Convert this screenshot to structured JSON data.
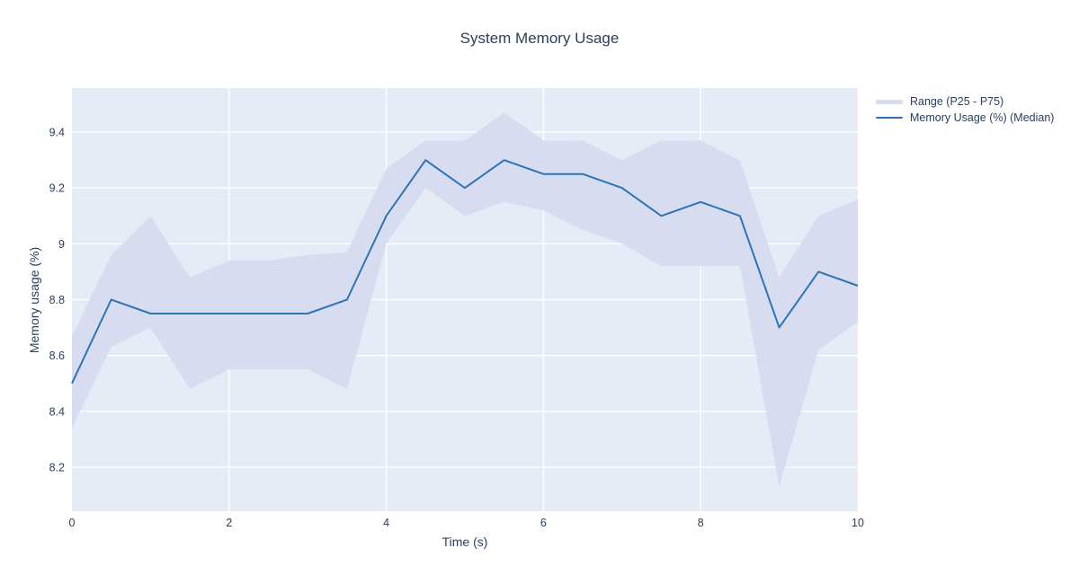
{
  "chart_data": {
    "type": "line",
    "title": "System Memory Usage",
    "xlabel": "Time (s)",
    "ylabel": "Memory usage (%)",
    "x": [
      0,
      0.5,
      1,
      1.5,
      2,
      2.5,
      3,
      3.5,
      4,
      4.5,
      5,
      5.5,
      6,
      6.5,
      7,
      7.5,
      8,
      8.5,
      9,
      9.5,
      10
    ],
    "series": [
      {
        "name": "Memory Usage (%) (Median)",
        "values": [
          8.5,
          8.8,
          8.75,
          8.75,
          8.75,
          8.75,
          8.75,
          8.8,
          9.1,
          9.3,
          9.2,
          9.3,
          9.25,
          9.25,
          9.2,
          9.1,
          9.15,
          9.1,
          8.7,
          8.9,
          8.85
        ]
      },
      {
        "name": "Range (P25 - P75) upper",
        "values": [
          8.67,
          8.96,
          9.1,
          8.88,
          8.94,
          8.94,
          8.96,
          8.97,
          9.27,
          9.37,
          9.37,
          9.47,
          9.37,
          9.37,
          9.3,
          9.37,
          9.37,
          9.3,
          8.88,
          9.1,
          9.16
        ]
      },
      {
        "name": "Range (P25 - P75) lower",
        "values": [
          8.34,
          8.63,
          8.7,
          8.48,
          8.55,
          8.55,
          8.55,
          8.48,
          9.0,
          9.2,
          9.1,
          9.15,
          9.12,
          9.05,
          9.0,
          8.92,
          8.92,
          8.92,
          8.13,
          8.62,
          8.72
        ]
      }
    ],
    "xlim": [
      0,
      10
    ],
    "ylim": [
      8.042,
      9.558
    ],
    "xticks": [
      0,
      2,
      4,
      6,
      8,
      10
    ],
    "yticks": [
      8.2,
      8.4,
      8.6,
      8.8,
      9,
      9.2,
      9.4
    ],
    "grid": "on",
    "legend_position": "top-right-outside"
  },
  "legend": {
    "band_label": "Range (P25 - P75)",
    "median_label": "Memory Usage (%) (Median)"
  },
  "colors": {
    "paper_bg": "#ffffff",
    "plot_bg": "#e5ecf6",
    "grid": "#ffffff",
    "band_fill": "#d8dcf1",
    "line": "#2e74b5",
    "text": "#2a3f5f"
  }
}
